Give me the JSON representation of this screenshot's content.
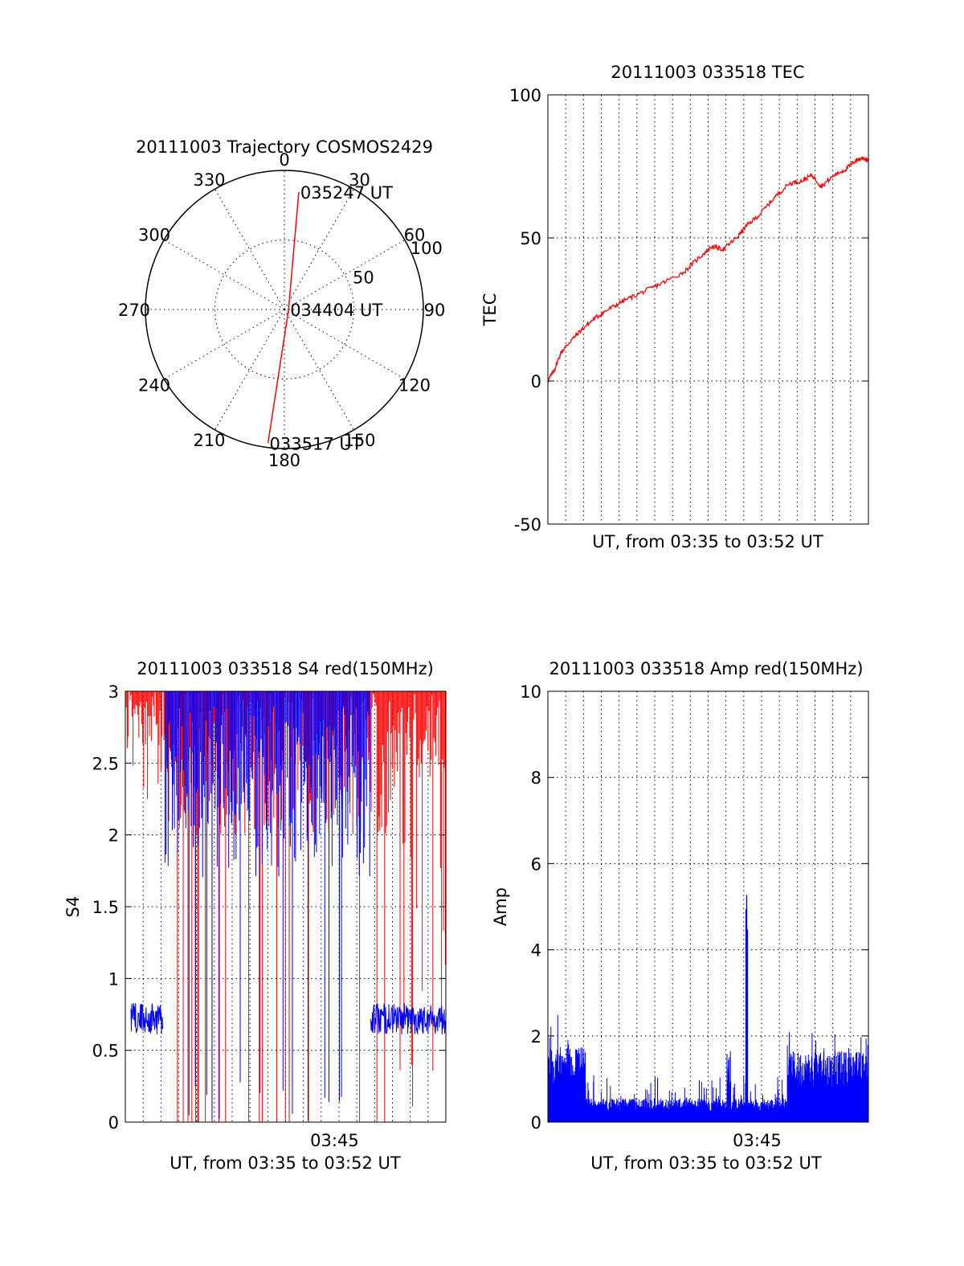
{
  "chart_data": [
    {
      "type": "polar",
      "title": "20111003 Trajectory COSMOS2429",
      "azimuth_ticks": [
        "0",
        "30",
        "60",
        "90",
        "120",
        "150",
        "180",
        "210",
        "240",
        "270",
        "300",
        "330"
      ],
      "zenith_ring_labels": [
        "50",
        "100"
      ],
      "zenith_range": [
        0,
        100
      ],
      "grid": true,
      "trajectory": {
        "color": "#ff0000",
        "points": [
          {
            "azimuth": 7,
            "zenith": 85
          },
          {
            "azimuth": 90,
            "zenith": 3
          },
          {
            "azimuth": 187,
            "zenith": 97
          }
        ]
      },
      "annotations": [
        {
          "text": "035247 UT",
          "at_point": 0
        },
        {
          "text": "034404 UT",
          "at_point": 1
        },
        {
          "text": "033517 UT",
          "at_point": 2
        }
      ]
    },
    {
      "type": "line",
      "title": "20111003 033518 TEC",
      "xlabel": "UT, from 03:35 to 03:52 UT",
      "ylabel": "TEC",
      "ylim": [
        -50,
        100
      ],
      "yticks": [
        "-50",
        "0",
        "50",
        "100"
      ],
      "xlim": [
        0,
        17
      ],
      "grid": true,
      "series": [
        {
          "color": "#ff0000",
          "x": [
            0,
            0.35,
            0.7,
            1.2,
            1.8,
            2.5,
            3.2,
            4.0,
            5.0,
            6.0,
            7.2,
            8.0,
            8.7,
            9.3,
            10.0,
            10.5,
            11.2,
            12.0,
            12.8,
            13.5,
            14.0,
            14.5,
            15.2,
            15.8,
            16.3,
            16.7,
            17.0
          ],
          "y": [
            0,
            4,
            10,
            14,
            18,
            22,
            25,
            28,
            31,
            34,
            38,
            43,
            47,
            46,
            50,
            54,
            58,
            64,
            69,
            70,
            72,
            68,
            72,
            74,
            77,
            78,
            77
          ]
        }
      ]
    },
    {
      "type": "line",
      "title": "20111003 033518 S4 red(150MHz)",
      "xlabel": "UT, from 03:35 to 03:52 UT",
      "ylabel": "S4",
      "xticks": [
        "03:45"
      ],
      "xtick_values": [
        10.5
      ],
      "ylim": [
        0,
        3
      ],
      "yticks": [
        "0",
        "0.5",
        "1",
        "1.5",
        "2",
        "2.5",
        "3"
      ],
      "xlim": [
        0,
        17
      ],
      "grid": true,
      "series": [
        {
          "color": "#ff0000",
          "description_values": [
            0,
            3
          ]
        },
        {
          "color": "#0000ff",
          "baseline_segments": [
            {
              "x": [
                0.3,
                2.0
              ],
              "level": 0.72
            },
            {
              "x": [
                13.0,
                17.0
              ],
              "level": 0.72
            }
          ]
        }
      ]
    },
    {
      "type": "line",
      "title": "20111003 033518 Amp red(150MHz)",
      "xlabel": "UT, from 03:35 to 03:52 UT",
      "ylabel": "Amp",
      "xticks": [
        "03:45"
      ],
      "xtick_values": [
        10.5
      ],
      "ylim": [
        0,
        10
      ],
      "yticks": [
        "0",
        "2",
        "4",
        "6",
        "8",
        "10"
      ],
      "xlim": [
        0,
        17
      ],
      "grid": true,
      "series": [
        {
          "color": "#0000ff",
          "segments": [
            {
              "x": [
                0,
                2.0
              ],
              "level": 1.6,
              "peak": 2.7
            },
            {
              "x": [
                2.0,
                12.7
              ],
              "level": 0.5,
              "peak": 1.1
            },
            {
              "x": [
                9.5,
                9.7
              ],
              "level": 1.5,
              "peak": 1.7
            },
            {
              "x": [
                10.5,
                10.6
              ],
              "level": 2.0,
              "peak": 5.4
            },
            {
              "x": [
                12.7,
                17.0
              ],
              "level": 1.5,
              "peak": 2.1
            }
          ]
        }
      ]
    }
  ]
}
